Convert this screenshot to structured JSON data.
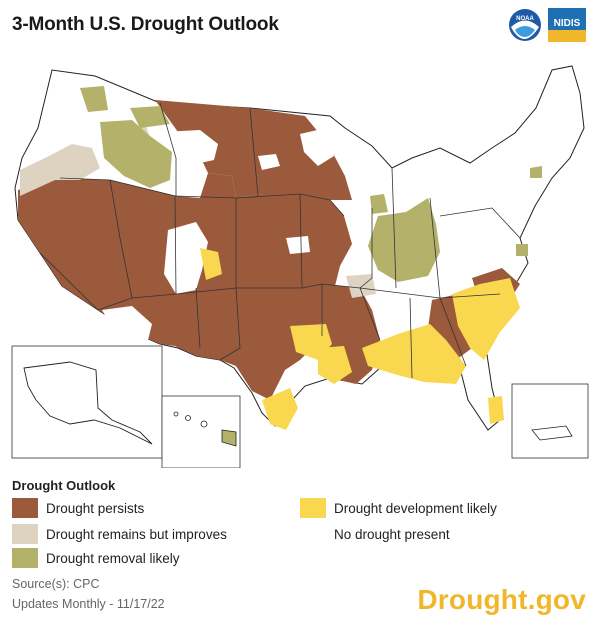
{
  "title": "3-Month U.S. Drought Outlook",
  "logos": [
    {
      "name": "noaa-logo",
      "text": "NOAA"
    },
    {
      "name": "nidis-logo",
      "text": "NIDIS"
    }
  ],
  "legend": {
    "title": "Drought Outlook",
    "items": [
      {
        "label": "Drought persists",
        "color": "#9b5a3c"
      },
      {
        "label": "Drought remains but improves",
        "color": "#ddd3c0"
      },
      {
        "label": "Drought removal likely",
        "color": "#b3b16a"
      },
      {
        "label": "Drought development likely",
        "color": "#f9d84f"
      },
      {
        "label": "No drought present",
        "color": "#ffffff"
      }
    ]
  },
  "source": "Source(s): CPC",
  "updated": "Updates Monthly - 11/17/22",
  "brand": "Drought.gov",
  "colors": {
    "persists": "#9b5a3c",
    "improves": "#ddd3c0",
    "removal": "#b3b16a",
    "development": "#f9d84f",
    "none": "#ffffff",
    "border": "#222222",
    "brand": "#f1b72a"
  }
}
